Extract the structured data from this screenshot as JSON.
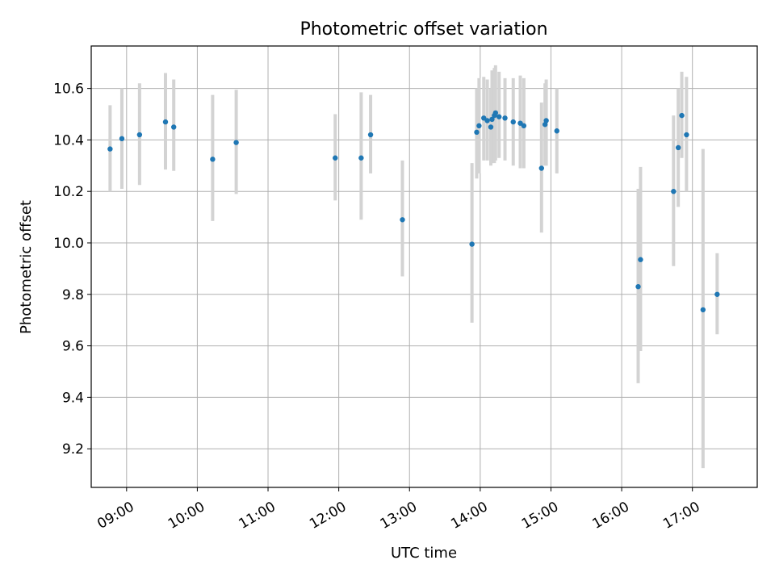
{
  "chart_data": {
    "type": "scatter",
    "title": "Photometric offset variation",
    "xlabel": "UTC time",
    "ylabel": "Photometric offset",
    "xlim": [
      "08:30",
      "17:55"
    ],
    "ylim": [
      9.05,
      10.765
    ],
    "x_ticks": [
      "09:00",
      "10:00",
      "11:00",
      "12:00",
      "13:00",
      "14:00",
      "15:00",
      "16:00",
      "17:00"
    ],
    "y_ticks": [
      "9.2",
      "9.4",
      "9.6",
      "9.8",
      "10.0",
      "10.2",
      "10.4",
      "10.6"
    ],
    "grid": true,
    "point_color": "#1f77b4",
    "errorbar_color": "#d3d3d3",
    "points": [
      {
        "t": "08:46",
        "y": 10.365,
        "lo": 10.2,
        "hi": 10.535
      },
      {
        "t": "08:56",
        "y": 10.405,
        "lo": 10.21,
        "hi": 10.6
      },
      {
        "t": "09:11",
        "y": 10.42,
        "lo": 10.225,
        "hi": 10.62
      },
      {
        "t": "09:33",
        "y": 10.47,
        "lo": 10.285,
        "hi": 10.66
      },
      {
        "t": "09:40",
        "y": 10.45,
        "lo": 10.28,
        "hi": 10.635
      },
      {
        "t": "10:13",
        "y": 10.325,
        "lo": 10.085,
        "hi": 10.575
      },
      {
        "t": "10:33",
        "y": 10.39,
        "lo": 10.19,
        "hi": 10.595
      },
      {
        "t": "11:57",
        "y": 10.33,
        "lo": 10.165,
        "hi": 10.5
      },
      {
        "t": "12:19",
        "y": 10.33,
        "lo": 10.09,
        "hi": 10.585
      },
      {
        "t": "12:27",
        "y": 10.42,
        "lo": 10.27,
        "hi": 10.575
      },
      {
        "t": "12:54",
        "y": 10.09,
        "lo": 9.87,
        "hi": 10.32
      },
      {
        "t": "13:53",
        "y": 9.995,
        "lo": 9.69,
        "hi": 10.31
      },
      {
        "t": "13:57",
        "y": 10.43,
        "lo": 10.25,
        "hi": 10.6
      },
      {
        "t": "13:59",
        "y": 10.455,
        "lo": 10.27,
        "hi": 10.64
      },
      {
        "t": "14:03",
        "y": 10.485,
        "lo": 10.32,
        "hi": 10.645
      },
      {
        "t": "14:06",
        "y": 10.475,
        "lo": 10.32,
        "hi": 10.635
      },
      {
        "t": "14:09",
        "y": 10.45,
        "lo": 10.3,
        "hi": 10.6
      },
      {
        "t": "14:10",
        "y": 10.48,
        "lo": 10.31,
        "hi": 10.67
      },
      {
        "t": "14:12",
        "y": 10.495,
        "lo": 10.31,
        "hi": 10.68
      },
      {
        "t": "14:13",
        "y": 10.505,
        "lo": 10.32,
        "hi": 10.69
      },
      {
        "t": "14:16",
        "y": 10.49,
        "lo": 10.33,
        "hi": 10.665
      },
      {
        "t": "14:21",
        "y": 10.485,
        "lo": 10.32,
        "hi": 10.64
      },
      {
        "t": "14:28",
        "y": 10.47,
        "lo": 10.3,
        "hi": 10.64
      },
      {
        "t": "14:34",
        "y": 10.465,
        "lo": 10.29,
        "hi": 10.65
      },
      {
        "t": "14:37",
        "y": 10.455,
        "lo": 10.29,
        "hi": 10.64
      },
      {
        "t": "14:52",
        "y": 10.29,
        "lo": 10.04,
        "hi": 10.545
      },
      {
        "t": "14:55",
        "y": 10.46,
        "lo": 10.3,
        "hi": 10.62
      },
      {
        "t": "14:56",
        "y": 10.475,
        "lo": 10.3,
        "hi": 10.635
      },
      {
        "t": "15:05",
        "y": 10.435,
        "lo": 10.27,
        "hi": 10.6
      },
      {
        "t": "16:14",
        "y": 9.83,
        "lo": 9.455,
        "hi": 10.21
      },
      {
        "t": "16:16",
        "y": 9.935,
        "lo": 9.58,
        "hi": 10.295
      },
      {
        "t": "16:44",
        "y": 10.2,
        "lo": 9.91,
        "hi": 10.495
      },
      {
        "t": "16:48",
        "y": 10.37,
        "lo": 10.14,
        "hi": 10.6
      },
      {
        "t": "16:51",
        "y": 10.495,
        "lo": 10.33,
        "hi": 10.665
      },
      {
        "t": "16:55",
        "y": 10.42,
        "lo": 10.2,
        "hi": 10.645
      },
      {
        "t": "17:09",
        "y": 9.74,
        "lo": 9.125,
        "hi": 10.365
      },
      {
        "t": "17:21",
        "y": 9.8,
        "lo": 9.645,
        "hi": 9.96
      }
    ]
  }
}
